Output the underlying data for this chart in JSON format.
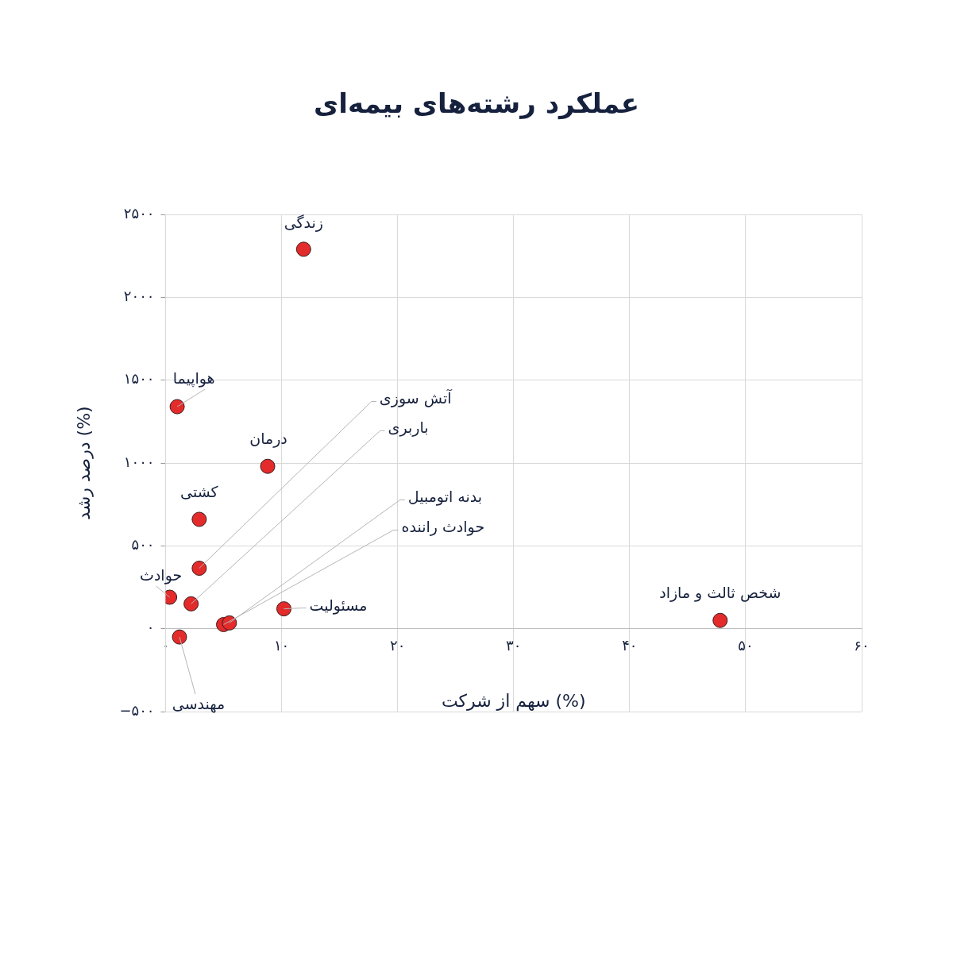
{
  "chart_data": {
    "type": "scatter",
    "title": "عملکرد رشته‌های بیمه‌ای",
    "xlabel": "سهم از شرکت (%)",
    "ylabel": "درصد رشد (%)",
    "x": [
      11.9,
      1.0,
      8.8,
      2.9,
      2.9,
      0.35,
      2.2,
      10.2,
      5.0,
      5.5,
      1.2,
      47.8
    ],
    "values": [
      2290,
      1340,
      980,
      660,
      365,
      190,
      150,
      120,
      25,
      35,
      -50,
      50
    ],
    "color": "#e32b2b",
    "marker": "circle",
    "xlim": [
      0,
      60
    ],
    "ylim": [
      -500,
      2500
    ],
    "xticks": [
      {
        "value": 0,
        "label": "۰"
      },
      {
        "value": 10,
        "label": "۱۰"
      },
      {
        "value": 20,
        "label": "۲۰"
      },
      {
        "value": 30,
        "label": "۳۰"
      },
      {
        "value": 40,
        "label": "۴۰"
      },
      {
        "value": 50,
        "label": "۵۰"
      },
      {
        "value": 60,
        "label": "۶۰"
      }
    ],
    "yticks": [
      {
        "value": -500,
        "label": "−۵۰۰"
      },
      {
        "value": 0,
        "label": "۰"
      },
      {
        "value": 500,
        "label": "۵۰۰"
      },
      {
        "value": 1000,
        "label": "۱۰۰۰"
      },
      {
        "value": 1500,
        "label": "۱۵۰۰"
      },
      {
        "value": 2000,
        "label": "۲۰۰۰"
      },
      {
        "value": 2500,
        "label": "۲۵۰۰"
      }
    ],
    "grid": true,
    "annotations": [
      {
        "text": "زندگی",
        "x": 11.9,
        "y": 2290
      },
      {
        "text": "هواپیما",
        "x": 1.0,
        "y": 1340
      },
      {
        "text": "درمان",
        "x": 8.8,
        "y": 980
      },
      {
        "text": "کشتی",
        "x": 2.9,
        "y": 660
      },
      {
        "text": "آتش سوزی",
        "x": 2.9,
        "y": 365
      },
      {
        "text": "حوادث",
        "x": 0.35,
        "y": 190
      },
      {
        "text": "باربری",
        "x": 2.2,
        "y": 150
      },
      {
        "text": "مسئولیت",
        "x": 10.2,
        "y": 120
      },
      {
        "text": "حوادث راننده",
        "x": 5.0,
        "y": 25
      },
      {
        "text": "بدنه اتومبیل",
        "x": 5.5,
        "y": 35
      },
      {
        "text": "مهندسی",
        "x": 1.2,
        "y": -50
      },
      {
        "text": "شخص ثالث و مازاد",
        "x": 47.8,
        "y": 50
      }
    ]
  }
}
